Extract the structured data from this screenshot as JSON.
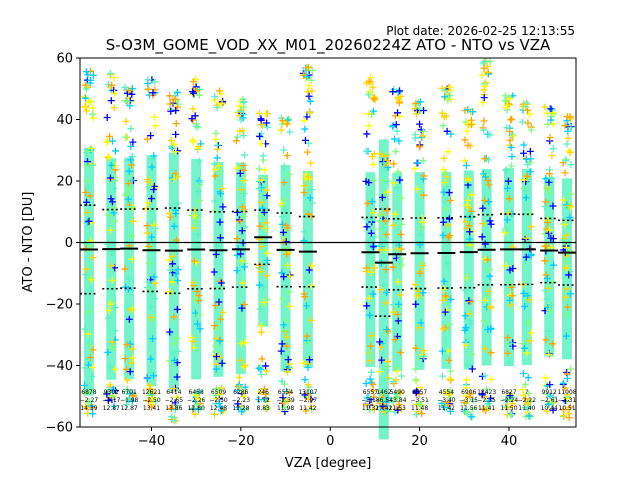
{
  "chart_data": {
    "type": "scatter",
    "title": "S-O3M_GOME_VOD_XX_M01_20260224Z ATO - NTO vs VZA",
    "plot_date": "Plot date: 2026-02-25 12:13:55",
    "xlabel": "VZA [degree]",
    "ylabel": "ATO - NTO [DU]",
    "xlim": [
      -56,
      55
    ],
    "ylim": [
      -60,
      60
    ],
    "xticks": [
      -40,
      -20,
      0,
      20,
      40
    ],
    "yticks": [
      -60,
      -40,
      -20,
      0,
      20,
      40,
      60
    ],
    "xtick_labels": [
      "−40",
      "−20",
      "0",
      "20",
      "40"
    ],
    "ytick_labels": [
      "−60",
      "−40",
      "−20",
      "0",
      "20",
      "40",
      "60"
    ],
    "zero_line": 0,
    "scatter_colors": [
      "#5cf2c2",
      "#7fff7f",
      "#ffd700",
      "#ffa500",
      "#00ccff",
      "#0000ff",
      "#ffff00"
    ],
    "bins": [
      {
        "vza": -54,
        "count": "6878",
        "mean": -2.27,
        "std": 14.39,
        "top": 56,
        "bottom": -56
      },
      {
        "vza": -49,
        "count": "9302",
        "mean": -2.17,
        "std": 12.87,
        "top": 55,
        "bottom": -55
      },
      {
        "vza": -45,
        "count": "6701",
        "mean": -1.98,
        "std": 12.87,
        "top": 51,
        "bottom": -54
      },
      {
        "vza": -40,
        "count": "12621",
        "mean": -2.5,
        "std": 13.41,
        "top": 53,
        "bottom": -55
      },
      {
        "vza": -35,
        "count": "6414",
        "mean": -2.65,
        "std": 13.86,
        "top": 49,
        "bottom": -58
      },
      {
        "vza": -30,
        "count": "6458",
        "mean": -2.26,
        "std": 12.8,
        "top": 53,
        "bottom": -56
      },
      {
        "vza": -25,
        "count": "6509",
        "mean": -2.5,
        "std": 12.48,
        "top": 50,
        "bottom": -56
      },
      {
        "vza": -20,
        "count": "6286",
        "mean": -2.23,
        "std": 12.28,
        "top": 47,
        "bottom": -55
      },
      {
        "vza": -15,
        "count": "246",
        "mean": 1.72,
        "std": 8.83,
        "top": 43,
        "bottom": -56
      },
      {
        "vza": -10,
        "count": "6554",
        "mean": -2.39,
        "std": 11.98,
        "top": 41,
        "bottom": -56
      },
      {
        "vza": -5,
        "count": "13107",
        "mean": -2.97,
        "std": 11.42,
        "top": 58,
        "bottom": -55
      },
      {
        "vza": 9,
        "count": "6557",
        "mean": -3.18,
        "std": 11.32,
        "top": 54,
        "bottom": -55
      },
      {
        "vza": 12,
        "count": "1462",
        "mean": -6.54,
        "std": 17.42,
        "top": 29,
        "bottom": -56
      },
      {
        "vza": 15,
        "count": "5490",
        "mean": -3.84,
        "std": 11.53,
        "top": 50,
        "bottom": -56
      },
      {
        "vza": 20,
        "count": "6557",
        "mean": -3.51,
        "std": 11.48,
        "top": 47,
        "bottom": -56
      },
      {
        "vza": 26,
        "count": "4554",
        "mean": -3.4,
        "std": 11.42,
        "top": 51,
        "bottom": -56
      },
      {
        "vza": 31,
        "count": "6906",
        "mean": -3.15,
        "std": 11.56,
        "top": 44,
        "bottom": -57
      },
      {
        "vza": 35,
        "count": "13423",
        "mean": -2.35,
        "std": 11.41,
        "top": 59,
        "bottom": -57
      },
      {
        "vza": 40,
        "count": "6827",
        "mean": -2.24,
        "std": 11.5,
        "top": 48,
        "bottom": -57
      },
      {
        "vza": 44,
        "count": "?",
        "mean": -2.22,
        "std": 11.4,
        "top": 47,
        "bottom": -57
      },
      {
        "vza": 49,
        "count": "9912",
        "mean": -2.61,
        "std": 10.44,
        "top": 44,
        "bottom": -56
      },
      {
        "vza": 53,
        "count": "11008",
        "mean": -3.31,
        "std": 10.51,
        "top": 42,
        "bottom": -57
      }
    ]
  }
}
